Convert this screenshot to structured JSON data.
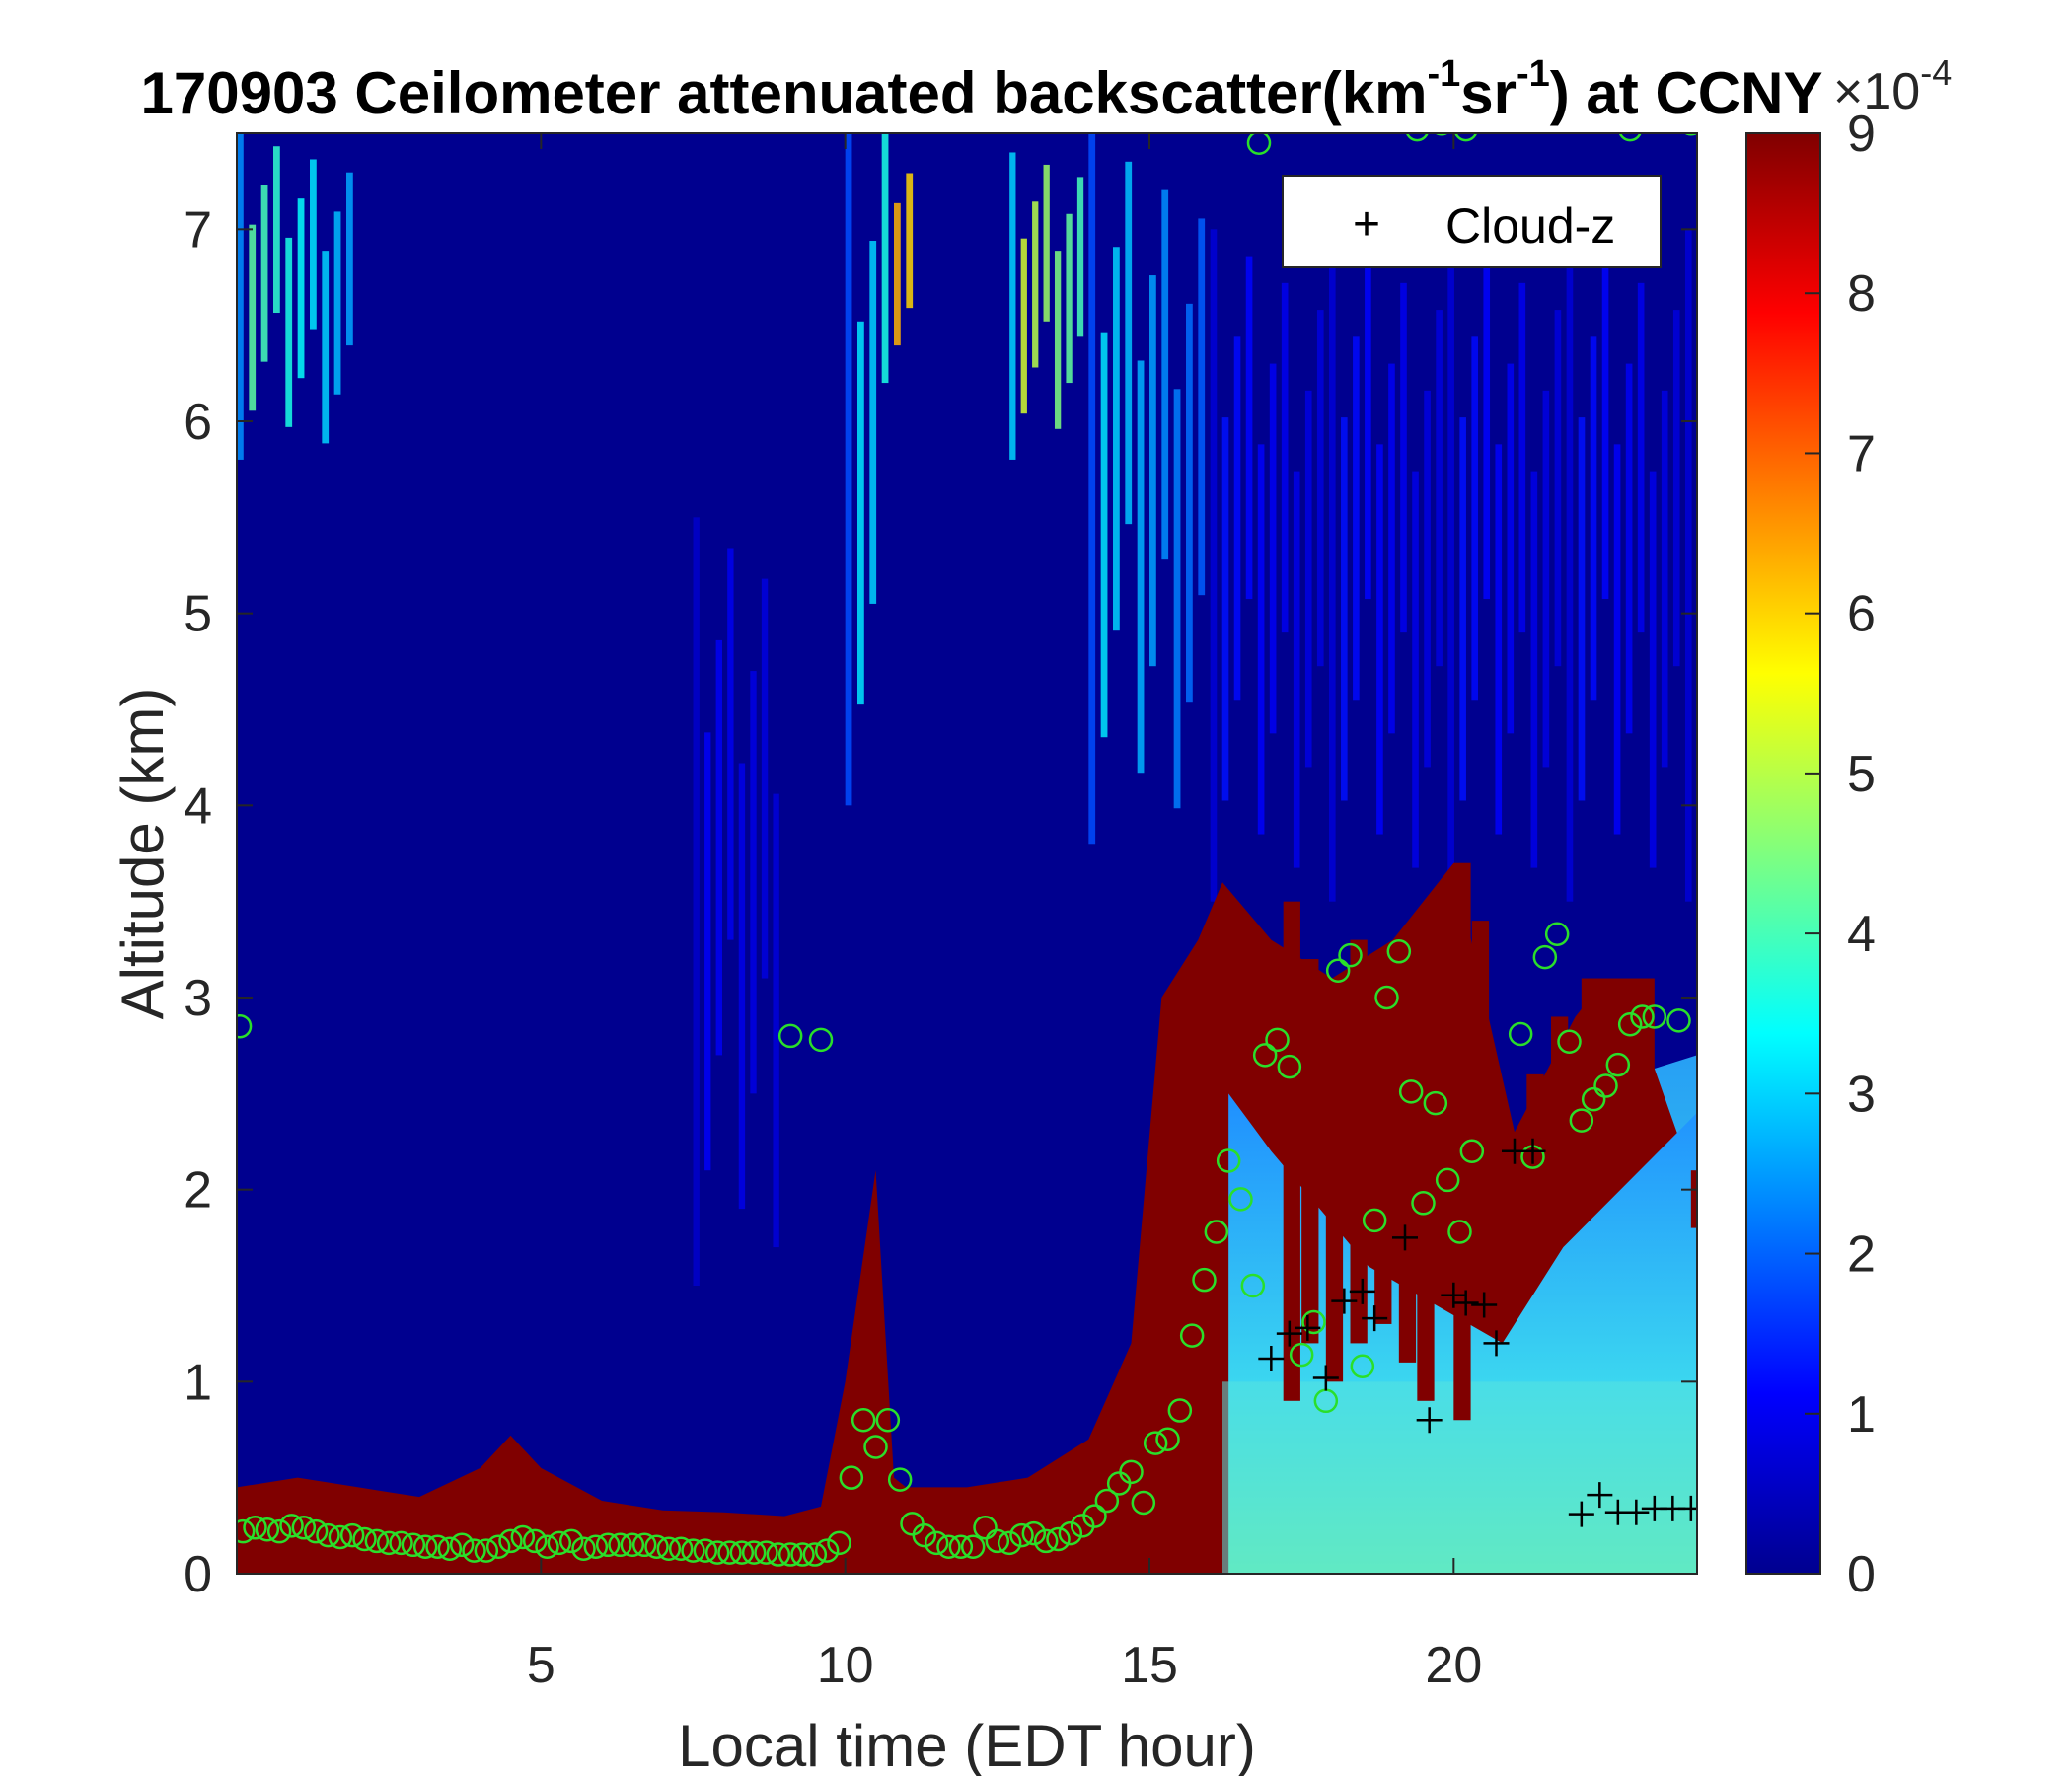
{
  "chart_data": {
    "type": "heatmap",
    "title_parts": {
      "pre": "170903 Ceilometer attenuated backscatter(km",
      "sup1": "-1",
      "mid": "sr",
      "sup2": "-1",
      "post": ") at CCNY"
    },
    "xlabel": "Local time (EDT hour)",
    "ylabel": "Altitude (km)",
    "xlim": [
      0,
      24
    ],
    "ylim": [
      0,
      7.5
    ],
    "xticks": [
      5,
      10,
      15,
      20
    ],
    "yticks": [
      0,
      1,
      2,
      3,
      4,
      5,
      6,
      7
    ],
    "colorbar": {
      "colormap": "jet",
      "range": [
        0,
        9
      ],
      "ticks": [
        0,
        1,
        2,
        3,
        4,
        5,
        6,
        7,
        8,
        9
      ],
      "multiplier_base": "×10",
      "multiplier_exp": "-4"
    },
    "legend": {
      "position": "top-right",
      "entries": [
        {
          "marker": "+",
          "color": "#000000",
          "label": "Cloud-z"
        }
      ]
    },
    "boundary_layer_top_km": {
      "x": [
        0,
        1,
        2,
        3,
        4,
        4.5,
        5,
        6,
        7,
        8,
        9,
        9.6,
        10,
        10.5,
        10.8,
        11,
        12,
        13,
        14,
        14.7,
        15.2,
        15.8,
        16.2,
        17,
        18,
        19,
        20,
        21,
        22,
        22.5,
        23,
        24
      ],
      "y": [
        0.45,
        0.5,
        0.45,
        0.4,
        0.55,
        0.72,
        0.55,
        0.38,
        0.33,
        0.32,
        0.3,
        0.35,
        1.0,
        2.1,
        0.5,
        0.45,
        0.45,
        0.5,
        0.7,
        1.2,
        3.0,
        3.3,
        3.6,
        3.3,
        3.1,
        3.3,
        3.7,
        2.3,
        2.9,
        3.1,
        2.9,
        2.0
      ]
    },
    "green_circle_points": {
      "x": [
        0.1,
        0.3,
        0.5,
        0.7,
        0.9,
        1.1,
        1.3,
        1.5,
        1.7,
        1.9,
        2.1,
        2.3,
        2.5,
        2.7,
        2.9,
        3.1,
        3.3,
        3.5,
        3.7,
        3.9,
        4.1,
        4.3,
        4.5,
        4.7,
        4.9,
        5.1,
        5.3,
        5.5,
        5.7,
        5.9,
        6.1,
        6.3,
        6.5,
        6.7,
        6.9,
        7.1,
        7.3,
        7.5,
        7.7,
        7.9,
        8.1,
        8.3,
        8.5,
        8.7,
        8.9,
        9.1,
        9.3,
        9.5,
        9.7,
        9.9,
        10.1,
        10.3,
        10.5,
        10.7,
        10.9,
        11.1,
        11.3,
        11.5,
        11.7,
        11.9,
        12.1,
        12.3,
        12.5,
        12.7,
        12.9,
        13.1,
        13.3,
        13.5,
        13.7,
        13.9,
        14.1,
        14.3,
        14.5,
        14.7,
        14.9,
        15.1,
        15.3,
        15.5,
        15.7,
        15.9,
        16.1,
        16.3,
        16.5,
        16.7,
        16.9,
        17.1,
        17.3,
        17.5,
        17.7,
        17.9,
        18.1,
        18.3,
        18.5,
        18.7,
        18.9,
        19.1,
        19.3,
        19.5,
        19.7,
        19.9,
        20.1,
        20.3,
        21.1,
        21.3,
        21.5,
        21.7,
        21.9,
        22.1,
        22.3,
        22.5,
        22.7,
        22.9,
        23.1,
        23.3,
        23.7,
        0.05,
        9.1,
        9.6,
        16.8,
        19.4,
        19.8,
        20.2,
        22.9,
        23.9
      ],
      "y": [
        0.22,
        0.24,
        0.23,
        0.22,
        0.25,
        0.24,
        0.22,
        0.2,
        0.19,
        0.2,
        0.18,
        0.17,
        0.16,
        0.16,
        0.15,
        0.14,
        0.14,
        0.13,
        0.15,
        0.12,
        0.12,
        0.14,
        0.17,
        0.19,
        0.17,
        0.14,
        0.16,
        0.17,
        0.13,
        0.14,
        0.15,
        0.15,
        0.15,
        0.15,
        0.14,
        0.13,
        0.13,
        0.12,
        0.12,
        0.11,
        0.11,
        0.11,
        0.11,
        0.11,
        0.1,
        0.1,
        0.1,
        0.1,
        0.12,
        0.16,
        0.5,
        0.8,
        0.66,
        0.8,
        0.49,
        0.26,
        0.2,
        0.16,
        0.14,
        0.14,
        0.14,
        0.24,
        0.17,
        0.16,
        0.2,
        0.21,
        0.17,
        0.18,
        0.21,
        0.25,
        0.3,
        0.38,
        0.47,
        0.53,
        0.37,
        0.68,
        0.7,
        0.85,
        1.24,
        1.53,
        1.78,
        2.15,
        1.95,
        1.5,
        2.7,
        2.78,
        2.64,
        1.14,
        1.31,
        0.9,
        3.14,
        3.22,
        1.08,
        1.84,
        3.0,
        3.24,
        2.51,
        1.93,
        2.45,
        2.05,
        1.78,
        2.2,
        2.81,
        2.17,
        3.21,
        3.33,
        2.77,
        2.36,
        2.47,
        2.54,
        2.65,
        2.86,
        2.9,
        2.9,
        2.88,
        2.85,
        2.8,
        2.78,
        7.45,
        7.52,
        7.55,
        7.52,
        7.52,
        7.55,
        7.52,
        7.52,
        7.3
      ]
    },
    "cloud_z_points": {
      "x": [
        17.0,
        17.3,
        17.6,
        17.9,
        18.2,
        18.5,
        18.7,
        19.2,
        19.6,
        20.0,
        20.2,
        20.5,
        20.7,
        21.0,
        21.3,
        22.1,
        22.4,
        22.7,
        23.0,
        23.3,
        23.6,
        23.9
      ],
      "y": [
        1.12,
        1.25,
        1.28,
        1.02,
        1.42,
        1.47,
        1.33,
        1.75,
        0.8,
        1.45,
        1.41,
        1.4,
        1.2,
        2.2,
        2.2,
        0.31,
        0.41,
        0.32,
        0.32,
        0.34,
        0.34,
        0.34
      ]
    },
    "high_cloud_bands": [
      {
        "x": [
          0,
          2.0
        ],
        "y": [
          5.8,
          7.5
        ],
        "value": 4
      },
      {
        "x": [
          10,
          10.6
        ],
        "y": [
          4.0,
          7.5
        ],
        "value": 3
      },
      {
        "x": [
          10.6,
          11.2
        ],
        "y": [
          6.2,
          7.5
        ],
        "value": 6
      },
      {
        "x": [
          12.7,
          14.0
        ],
        "y": [
          5.8,
          7.4
        ],
        "value": 5
      },
      {
        "x": [
          14.0,
          16.0
        ],
        "y": [
          3.8,
          7.5
        ],
        "value": 3
      },
      {
        "x": [
          16,
          24
        ],
        "y": [
          3.5,
          7.0
        ],
        "value": 1.2
      },
      {
        "x": [
          7.5,
          9.0
        ],
        "y": [
          1.5,
          5.5
        ],
        "value": 1.0
      }
    ]
  }
}
